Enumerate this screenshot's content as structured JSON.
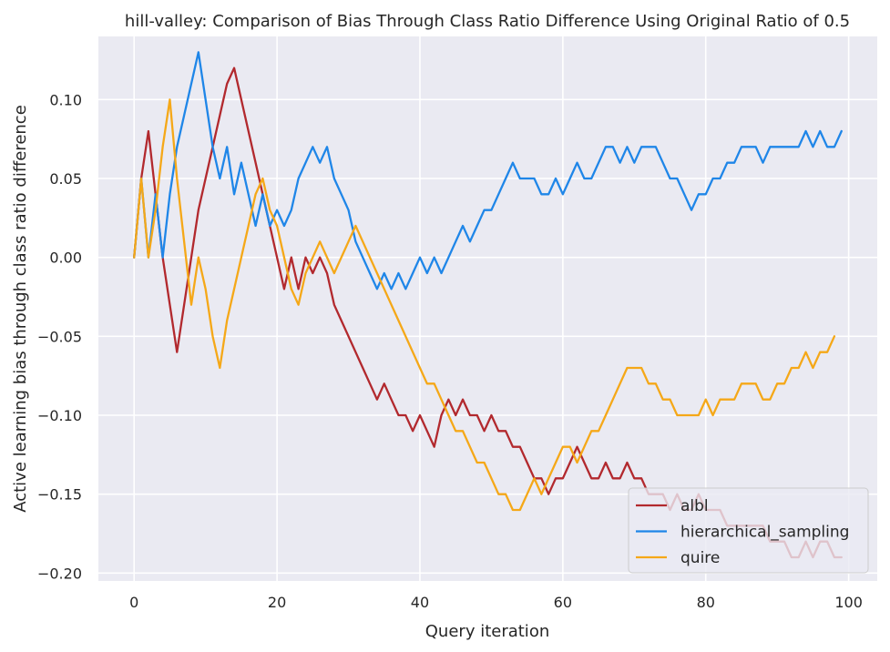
{
  "chart_data": {
    "type": "line",
    "title": "hill-valley: Comparison of Bias Through Class Ratio Difference Using Original Ratio of 0.5",
    "xlabel": "Query iteration",
    "ylabel": "Active learning bias through class ratio difference",
    "xlim": [
      -5,
      104
    ],
    "ylim": [
      -0.205,
      0.14
    ],
    "xticks": [
      0,
      20,
      40,
      60,
      80,
      100
    ],
    "yticks": [
      0.1,
      0.05,
      0.0,
      -0.05,
      -0.1,
      -0.15,
      -0.2
    ],
    "xtick_labels": [
      "0",
      "20",
      "40",
      "60",
      "80",
      "100"
    ],
    "ytick_labels": [
      "0.10",
      "0.05",
      "0.00",
      "−0.05",
      "−0.10",
      "−0.15",
      "−0.20"
    ],
    "grid": true,
    "legend_position": "lower-right",
    "background": "#eaeaf2",
    "series": [
      {
        "name": "albl",
        "color": "#b2292e",
        "values": [
          0.0,
          0.05,
          0.08,
          0.04,
          0.0,
          -0.03,
          -0.06,
          -0.03,
          0.0,
          0.03,
          0.05,
          0.07,
          0.09,
          0.11,
          0.12,
          0.1,
          0.08,
          0.06,
          0.04,
          0.02,
          0.0,
          -0.02,
          0.0,
          -0.02,
          0.0,
          -0.01,
          0.0,
          -0.01,
          -0.03,
          -0.04,
          -0.05,
          -0.06,
          -0.07,
          -0.08,
          -0.09,
          -0.08,
          -0.09,
          -0.1,
          -0.1,
          -0.11,
          -0.1,
          -0.11,
          -0.12,
          -0.1,
          -0.09,
          -0.1,
          -0.09,
          -0.1,
          -0.1,
          -0.11,
          -0.1,
          -0.11,
          -0.11,
          -0.12,
          -0.12,
          -0.13,
          -0.14,
          -0.14,
          -0.15,
          -0.14,
          -0.14,
          -0.13,
          -0.12,
          -0.13,
          -0.14,
          -0.14,
          -0.13,
          -0.14,
          -0.14,
          -0.13,
          -0.14,
          -0.14,
          -0.15,
          -0.15,
          -0.15,
          -0.16,
          -0.15,
          -0.16,
          -0.16,
          -0.15,
          -0.16,
          -0.16,
          -0.16,
          -0.17,
          -0.17,
          -0.17,
          -0.17,
          -0.17,
          -0.17,
          -0.18,
          -0.18,
          -0.18,
          -0.19,
          -0.19,
          -0.18,
          -0.19,
          -0.18,
          -0.18,
          -0.19,
          -0.19
        ]
      },
      {
        "name": "hierarchical_sampling",
        "color": "#1f86e8",
        "values": [
          0.0,
          0.05,
          0.0,
          0.04,
          0.0,
          0.04,
          0.07,
          0.09,
          0.11,
          0.13,
          0.1,
          0.07,
          0.05,
          0.07,
          0.04,
          0.06,
          0.04,
          0.02,
          0.04,
          0.02,
          0.03,
          0.02,
          0.03,
          0.05,
          0.06,
          0.07,
          0.06,
          0.07,
          0.05,
          0.04,
          0.03,
          0.01,
          0.0,
          -0.01,
          -0.02,
          -0.01,
          -0.02,
          -0.01,
          -0.02,
          -0.01,
          0.0,
          -0.01,
          0.0,
          -0.01,
          0.0,
          0.01,
          0.02,
          0.01,
          0.02,
          0.03,
          0.03,
          0.04,
          0.05,
          0.06,
          0.05,
          0.05,
          0.05,
          0.04,
          0.04,
          0.05,
          0.04,
          0.05,
          0.06,
          0.05,
          0.05,
          0.06,
          0.07,
          0.07,
          0.06,
          0.07,
          0.06,
          0.07,
          0.07,
          0.07,
          0.06,
          0.05,
          0.05,
          0.04,
          0.03,
          0.04,
          0.04,
          0.05,
          0.05,
          0.06,
          0.06,
          0.07,
          0.07,
          0.07,
          0.06,
          0.07,
          0.07,
          0.07,
          0.07,
          0.07,
          0.08,
          0.07,
          0.08,
          0.07,
          0.07,
          0.08
        ]
      },
      {
        "name": "quire",
        "color": "#f5a818",
        "values": [
          0.0,
          0.05,
          0.0,
          0.03,
          0.07,
          0.1,
          0.05,
          0.01,
          -0.03,
          0.0,
          -0.02,
          -0.05,
          -0.07,
          -0.04,
          -0.02,
          0.0,
          0.02,
          0.04,
          0.05,
          0.03,
          0.02,
          0.0,
          -0.02,
          -0.03,
          -0.01,
          0.0,
          0.01,
          0.0,
          -0.01,
          0.0,
          0.01,
          0.02,
          0.01,
          0.0,
          -0.01,
          -0.02,
          -0.03,
          -0.04,
          -0.05,
          -0.06,
          -0.07,
          -0.08,
          -0.08,
          -0.09,
          -0.1,
          -0.11,
          -0.11,
          -0.12,
          -0.13,
          -0.13,
          -0.14,
          -0.15,
          -0.15,
          -0.16,
          -0.16,
          -0.15,
          -0.14,
          -0.15,
          -0.14,
          -0.13,
          -0.12,
          -0.12,
          -0.13,
          -0.12,
          -0.11,
          -0.11,
          -0.1,
          -0.09,
          -0.08,
          -0.07,
          -0.07,
          -0.07,
          -0.08,
          -0.08,
          -0.09,
          -0.09,
          -0.1,
          -0.1,
          -0.1,
          -0.1,
          -0.09,
          -0.1,
          -0.09,
          -0.09,
          -0.09,
          -0.08,
          -0.08,
          -0.08,
          -0.09,
          -0.09,
          -0.08,
          -0.08,
          -0.07,
          -0.07,
          -0.06,
          -0.07,
          -0.06,
          -0.06,
          -0.05
        ]
      }
    ]
  }
}
